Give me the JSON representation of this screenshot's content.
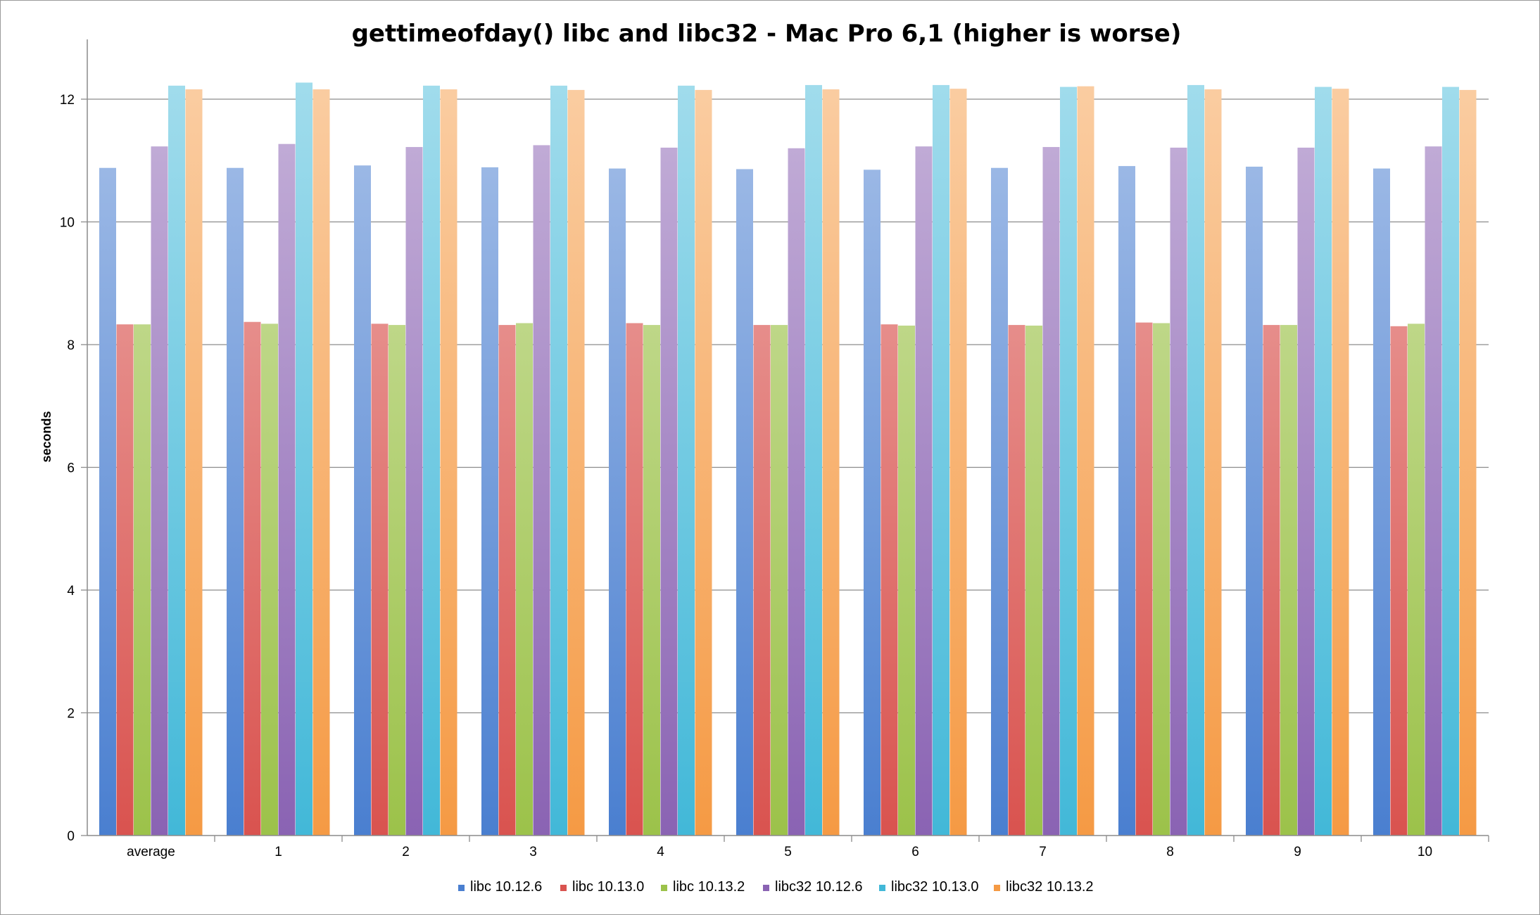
{
  "chart_data": {
    "type": "bar",
    "title": "gettimeofday() libc and libc32 - Mac Pro 6,1 (higher is worse)",
    "xlabel": "",
    "ylabel": "seconds",
    "ylim": [
      0,
      13
    ],
    "yticks": [
      0,
      2,
      4,
      6,
      8,
      10,
      12
    ],
    "grid": true,
    "legend_position": "bottom",
    "categories": [
      "average",
      "1",
      "2",
      "3",
      "4",
      "5",
      "6",
      "7",
      "8",
      "9",
      "10"
    ],
    "series": [
      {
        "name": "libc 10.12.6",
        "color": "#4a7fd0",
        "values": [
          10.88,
          10.88,
          10.92,
          10.89,
          10.87,
          10.86,
          10.85,
          10.88,
          10.91,
          10.9,
          10.87
        ]
      },
      {
        "name": "libc 10.13.0",
        "color": "#d9534f",
        "values": [
          8.33,
          8.37,
          8.34,
          8.32,
          8.35,
          8.32,
          8.33,
          8.32,
          8.36,
          8.32,
          8.3
        ]
      },
      {
        "name": "libc 10.13.2",
        "color": "#9cc24a",
        "values": [
          8.33,
          8.34,
          8.32,
          8.35,
          8.32,
          8.32,
          8.31,
          8.31,
          8.35,
          8.32,
          8.34
        ]
      },
      {
        "name": "libc32 10.12.6",
        "color": "#8a63b3",
        "values": [
          11.23,
          11.27,
          11.22,
          11.25,
          11.21,
          11.2,
          11.23,
          11.22,
          11.21,
          11.21,
          11.23
        ]
      },
      {
        "name": "libc32 10.13.0",
        "color": "#42b8d8",
        "values": [
          12.22,
          12.27,
          12.22,
          12.22,
          12.22,
          12.23,
          12.23,
          12.2,
          12.23,
          12.2,
          12.2
        ]
      },
      {
        "name": "libc32 10.13.2",
        "color": "#f59a44",
        "values": [
          12.16,
          12.16,
          12.16,
          12.15,
          12.15,
          12.16,
          12.17,
          12.21,
          12.16,
          12.17,
          12.15
        ]
      }
    ]
  }
}
